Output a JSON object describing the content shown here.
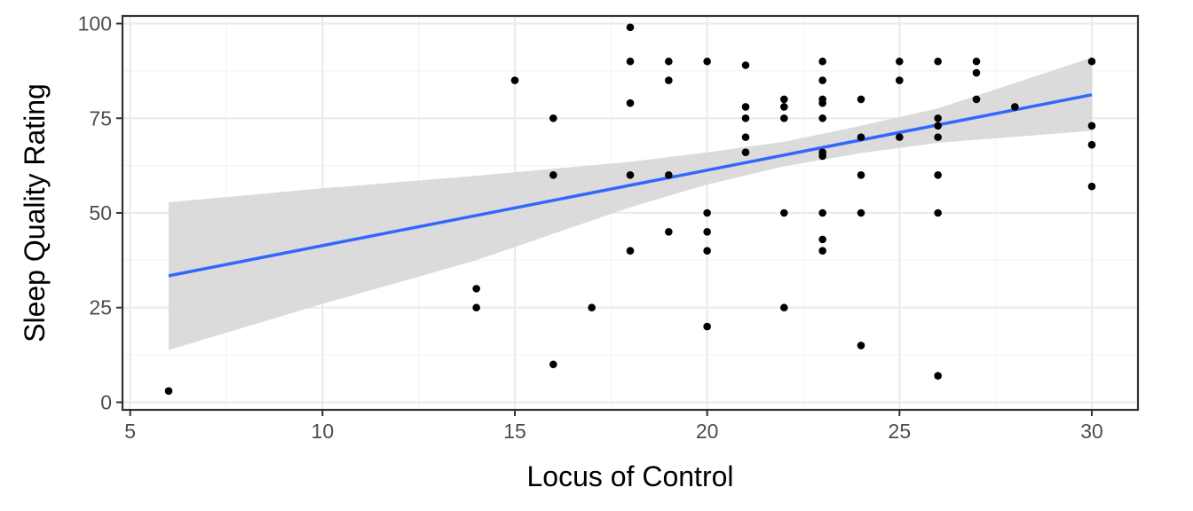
{
  "chart_data": {
    "type": "scatter",
    "title": "",
    "xlabel": "Locus of Control",
    "ylabel": "Sleep Quality Rating",
    "xlim": [
      4.8,
      31.2
    ],
    "ylim": [
      -2,
      102
    ],
    "x_ticks": [
      5,
      10,
      15,
      20,
      25,
      30
    ],
    "y_ticks": [
      0,
      25,
      50,
      75,
      100
    ],
    "grid": true,
    "legend": "none",
    "points": [
      {
        "x": 6,
        "y": 3
      },
      {
        "x": 14,
        "y": 30
      },
      {
        "x": 14,
        "y": 25
      },
      {
        "x": 15,
        "y": 85
      },
      {
        "x": 16,
        "y": 75
      },
      {
        "x": 16,
        "y": 60
      },
      {
        "x": 16,
        "y": 10
      },
      {
        "x": 17,
        "y": 25
      },
      {
        "x": 18,
        "y": 99
      },
      {
        "x": 18,
        "y": 90
      },
      {
        "x": 18,
        "y": 79
      },
      {
        "x": 18,
        "y": 60
      },
      {
        "x": 18,
        "y": 40
      },
      {
        "x": 19,
        "y": 90
      },
      {
        "x": 19,
        "y": 85
      },
      {
        "x": 19,
        "y": 60
      },
      {
        "x": 19,
        "y": 45
      },
      {
        "x": 20,
        "y": 90
      },
      {
        "x": 20,
        "y": 50
      },
      {
        "x": 20,
        "y": 45
      },
      {
        "x": 20,
        "y": 40
      },
      {
        "x": 20,
        "y": 20
      },
      {
        "x": 21,
        "y": 89
      },
      {
        "x": 21,
        "y": 78
      },
      {
        "x": 21,
        "y": 75
      },
      {
        "x": 21,
        "y": 70
      },
      {
        "x": 21,
        "y": 66
      },
      {
        "x": 22,
        "y": 80
      },
      {
        "x": 22,
        "y": 78
      },
      {
        "x": 22,
        "y": 75
      },
      {
        "x": 22,
        "y": 50
      },
      {
        "x": 22,
        "y": 25
      },
      {
        "x": 23,
        "y": 90
      },
      {
        "x": 23,
        "y": 85
      },
      {
        "x": 23,
        "y": 80
      },
      {
        "x": 23,
        "y": 79
      },
      {
        "x": 23,
        "y": 75
      },
      {
        "x": 23,
        "y": 66
      },
      {
        "x": 23,
        "y": 65
      },
      {
        "x": 23,
        "y": 50
      },
      {
        "x": 23,
        "y": 43
      },
      {
        "x": 23,
        "y": 40
      },
      {
        "x": 24,
        "y": 80
      },
      {
        "x": 24,
        "y": 70
      },
      {
        "x": 24,
        "y": 60
      },
      {
        "x": 24,
        "y": 50
      },
      {
        "x": 24,
        "y": 15
      },
      {
        "x": 25,
        "y": 90
      },
      {
        "x": 25,
        "y": 85
      },
      {
        "x": 25,
        "y": 70
      },
      {
        "x": 26,
        "y": 90
      },
      {
        "x": 26,
        "y": 75
      },
      {
        "x": 26,
        "y": 73
      },
      {
        "x": 26,
        "y": 70
      },
      {
        "x": 26,
        "y": 60
      },
      {
        "x": 26,
        "y": 50
      },
      {
        "x": 26,
        "y": 7
      },
      {
        "x": 27,
        "y": 90
      },
      {
        "x": 27,
        "y": 87
      },
      {
        "x": 27,
        "y": 80
      },
      {
        "x": 28,
        "y": 78
      },
      {
        "x": 30,
        "y": 90
      },
      {
        "x": 30,
        "y": 73
      },
      {
        "x": 30,
        "y": 68
      },
      {
        "x": 30,
        "y": 57
      }
    ],
    "fit_line": {
      "method": "linear",
      "x": [
        6,
        30
      ],
      "y": [
        33.4,
        81.2
      ],
      "color": "#3366ff",
      "confidence_band": {
        "x": [
          6,
          10,
          14,
          18,
          20,
          22,
          24,
          26,
          30
        ],
        "lower": [
          13.8,
          26,
          37.5,
          51.5,
          57.5,
          62.3,
          65.8,
          68.5,
          71.7
        ],
        "upper": [
          52.8,
          56.5,
          59.8,
          63.5,
          66,
          68.8,
          73,
          77.6,
          91
        ],
        "color": "#d9d9d9"
      }
    },
    "colors": {
      "points": "#000000",
      "panel_border": "#333333",
      "grid_major": "#ebebeb",
      "grid_minor": "#f5f5f5"
    }
  }
}
